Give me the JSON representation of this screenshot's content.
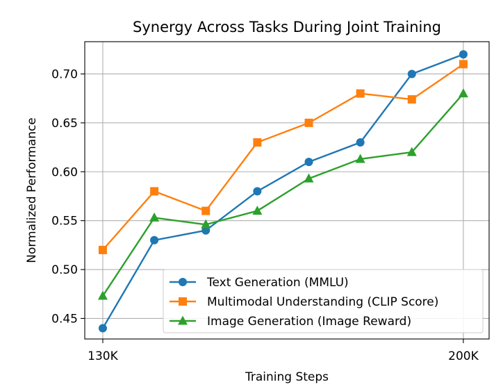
{
  "chart_data": {
    "type": "line",
    "title": "Synergy Across Tasks During Joint Training",
    "xlabel": "Training Steps",
    "ylabel": "Normalized Performance",
    "x": [
      130000,
      140000,
      150000,
      160000,
      170000,
      180000,
      190000,
      200000
    ],
    "xlim": [
      126500,
      205000
    ],
    "ylim": [
      0.429,
      0.733
    ],
    "x_ticks": [
      130000,
      200000
    ],
    "x_tick_labels": [
      "130K",
      "200K"
    ],
    "y_ticks": [
      0.45,
      0.5,
      0.55,
      0.6,
      0.65,
      0.7
    ],
    "y_tick_labels": [
      "0.45",
      "0.50",
      "0.55",
      "0.60",
      "0.65",
      "0.70"
    ],
    "grid": true,
    "legend_position": "lower-right",
    "series": [
      {
        "name": "Text Generation (MMLU)",
        "color": "#1f77b4",
        "marker": "circle",
        "values": [
          0.44,
          0.53,
          0.54,
          0.58,
          0.61,
          0.63,
          0.7,
          0.72
        ]
      },
      {
        "name": "Multimodal Understanding (CLIP Score)",
        "color": "#ff7f0e",
        "marker": "square",
        "values": [
          0.52,
          0.58,
          0.56,
          0.63,
          0.65,
          0.68,
          0.674,
          0.71
        ]
      },
      {
        "name": "Image Generation (Image Reward)",
        "color": "#2ca02c",
        "marker": "triangle",
        "values": [
          0.473,
          0.553,
          0.546,
          0.56,
          0.593,
          0.613,
          0.62,
          0.68
        ]
      }
    ]
  }
}
